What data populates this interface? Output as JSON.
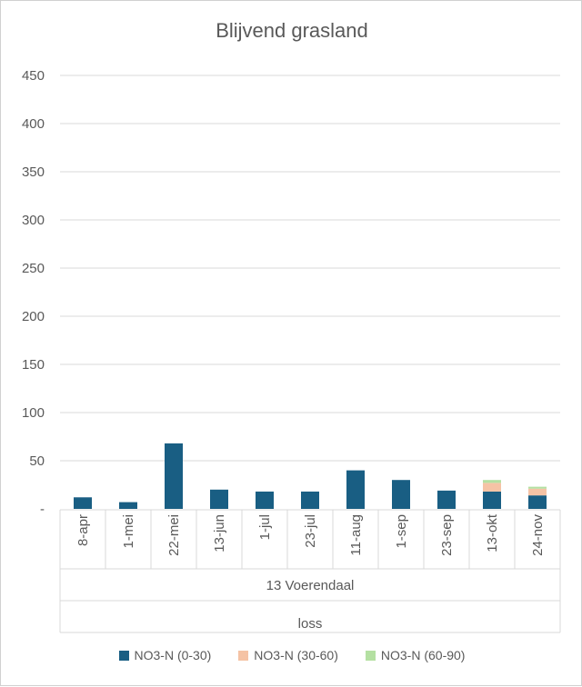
{
  "chart_data": {
    "type": "bar",
    "stacked": true,
    "title": "Blijvend grasland",
    "categories": [
      "8-apr",
      "1-mei",
      "22-mei",
      "13-jun",
      "1-jul",
      "23-jul",
      "11-aug",
      "1-sep",
      "23-sep",
      "13-okt",
      "24-nov"
    ],
    "group_labels": [
      "13 Voerendaal",
      "loss"
    ],
    "series": [
      {
        "name": "NO3-N (0-30)",
        "color": "#195e83",
        "values": [
          12,
          7,
          68,
          20,
          18,
          18,
          40,
          30,
          19,
          18,
          14
        ]
      },
      {
        "name": "NO3-N (30-60)",
        "color": "#f5c3a5",
        "values": [
          0,
          0,
          0,
          0,
          0,
          0,
          0,
          0,
          0,
          9,
          7
        ]
      },
      {
        "name": "NO3-N (60-90)",
        "color": "#b4e0a2",
        "values": [
          0,
          0,
          0,
          0,
          0,
          0,
          0,
          0,
          0,
          3,
          2
        ]
      }
    ],
    "yticks": [
      "-",
      "50",
      "100",
      "150",
      "200",
      "250",
      "300",
      "350",
      "400",
      "450"
    ],
    "ylim": [
      0,
      450
    ],
    "grid": true,
    "legend": "bottom"
  }
}
